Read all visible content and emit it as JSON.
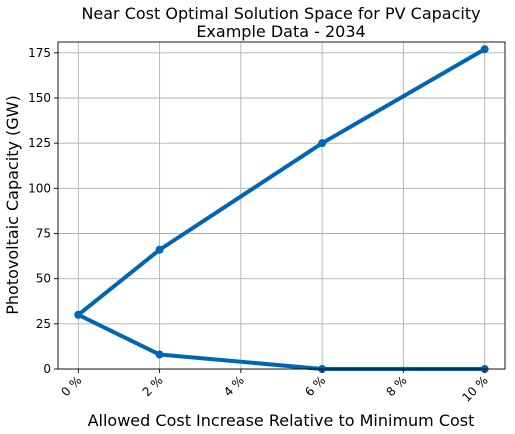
{
  "chart_data": {
    "type": "line",
    "title_line1": "Near Cost Optimal  Solution Space for PV Capacity",
    "title_line2": "Example Data - 2034",
    "xlabel": "Allowed Cost Increase Relative to Minimum Cost",
    "ylabel": "Photovoltaic Capacity (GW)",
    "x_ticks": [
      0,
      2,
      4,
      6,
      8,
      10
    ],
    "x_tick_labels": [
      "0 %",
      "2 %",
      "4 %",
      "6 %",
      "8 %",
      "10 %"
    ],
    "y_ticks": [
      0,
      25,
      50,
      75,
      100,
      125,
      150,
      175
    ],
    "y_tick_labels": [
      "0",
      "25",
      "50",
      "75",
      "100",
      "125",
      "150",
      "175"
    ],
    "xlim": [
      -0.5,
      10.5
    ],
    "ylim": [
      0,
      181
    ],
    "grid": true,
    "series": [
      {
        "values": [
          [
            0,
            30
          ],
          [
            2,
            66
          ],
          [
            6,
            125
          ],
          [
            10,
            177
          ]
        ],
        "color": "#0066b4"
      },
      {
        "values": [
          [
            0,
            30
          ],
          [
            2,
            8
          ],
          [
            6,
            0
          ],
          [
            10,
            0
          ]
        ],
        "color": "#0066b4"
      }
    ]
  }
}
